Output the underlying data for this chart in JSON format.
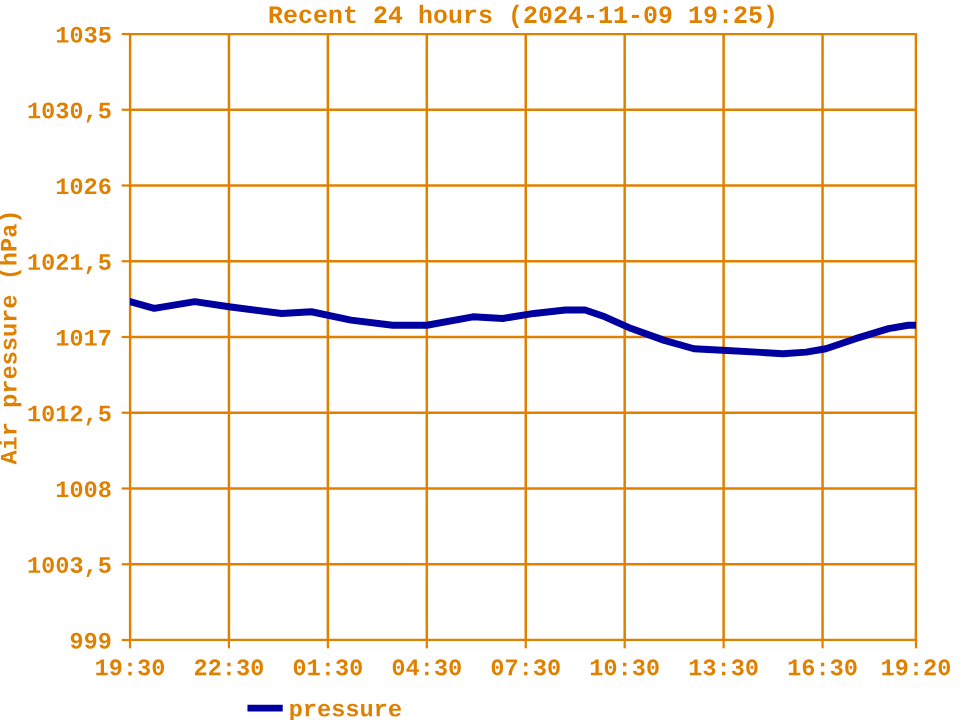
{
  "chart_data": {
    "type": "line",
    "title": "Recent 24 hours (2024-11-09 19:25)",
    "ylabel": "Air pressure (hPa)",
    "x": [
      "2024-11-08T19:30",
      "2024-11-08T20:14",
      "2024-11-08T21:28",
      "2024-11-08T22:30",
      "2024-11-09T00:06",
      "2024-11-09T01:00",
      "2024-11-09T02:12",
      "2024-11-09T03:28",
      "2024-11-09T04:30",
      "2024-11-09T05:54",
      "2024-11-09T06:48",
      "2024-11-09T07:45",
      "2024-11-09T08:42",
      "2024-11-09T09:18",
      "2024-11-09T09:54",
      "2024-11-09T10:42",
      "2024-11-09T11:42",
      "2024-11-09T12:36",
      "2024-11-09T13:36",
      "2024-11-09T14:30",
      "2024-11-09T15:18",
      "2024-11-09T16:00",
      "2024-11-09T16:36",
      "2024-11-09T17:30",
      "2024-11-09T18:30",
      "2024-11-09T19:06",
      "2024-11-09T19:18"
    ],
    "series": [
      {
        "name": "pressure",
        "color": "#0000a0",
        "values": [
          1019.1,
          1018.7,
          1019.1,
          1018.8,
          1018.4,
          1018.5,
          1018.0,
          1017.7,
          1017.7,
          1018.2,
          1018.1,
          1018.4,
          1018.6,
          1018.6,
          1018.2,
          1017.5,
          1016.8,
          1016.3,
          1016.2,
          1016.1,
          1016.0,
          1016.1,
          1016.3,
          1016.9,
          1017.5,
          1017.7,
          1017.7
        ]
      }
    ],
    "xlim": [
      "2024-11-08T19:30",
      "2024-11-09T19:20"
    ],
    "xticks": [
      {
        "value": "2024-11-08T19:30",
        "label": "19:30"
      },
      {
        "value": "2024-11-08T22:30",
        "label": "22:30"
      },
      {
        "value": "2024-11-09T01:30",
        "label": "01:30"
      },
      {
        "value": "2024-11-09T04:30",
        "label": "04:30"
      },
      {
        "value": "2024-11-09T07:30",
        "label": "07:30"
      },
      {
        "value": "2024-11-09T10:30",
        "label": "10:30"
      },
      {
        "value": "2024-11-09T13:30",
        "label": "13:30"
      },
      {
        "value": "2024-11-09T16:30",
        "label": "16:30"
      },
      {
        "value": "2024-11-09T19:20",
        "label": "19:20"
      }
    ],
    "ylim": [
      999,
      1035
    ],
    "yticks": [
      999,
      {
        "value": 1003.5,
        "label": "1003,5"
      },
      1008,
      {
        "value": 1012.5,
        "label": "1012,5"
      },
      1017,
      {
        "value": 1021.5,
        "label": "1021,5"
      },
      1026,
      {
        "value": 1030.5,
        "label": "1030,5"
      },
      1035
    ],
    "grid": true,
    "legend": "bottom",
    "line_style": "solid",
    "marker": "none"
  }
}
